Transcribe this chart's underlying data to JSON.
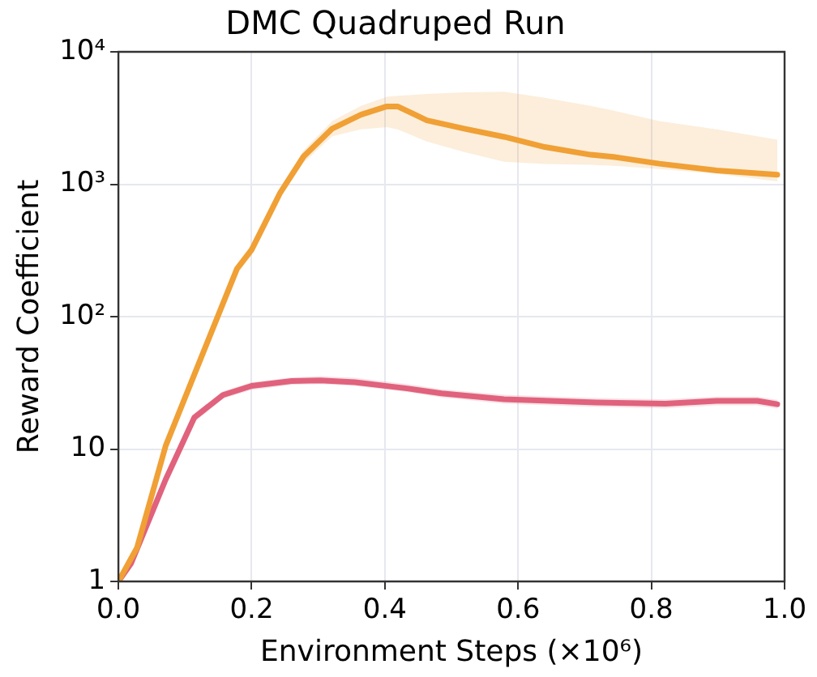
{
  "chart_data": {
    "type": "line",
    "title": "DMC Quadruped Run",
    "xlabel": "Environment Steps (×10⁶)",
    "ylabel": "Reward Coefficient",
    "log": "y",
    "grid": true,
    "legend": false,
    "marker": "none",
    "line_style": "solid",
    "xlim": [
      0,
      1
    ],
    "xticks": [
      {
        "value": 0,
        "label": "0.0"
      },
      {
        "value": 0.2,
        "label": "0.2"
      },
      {
        "value": 0.4,
        "label": "0.4"
      },
      {
        "value": 0.6,
        "label": "0.6"
      },
      {
        "value": 0.8,
        "label": "0.8"
      },
      {
        "value": 1,
        "label": "1.0"
      }
    ],
    "ylim": [
      1,
      10000
    ],
    "yticks": [
      1,
      10,
      {
        "value": 100,
        "label": "10²"
      },
      {
        "value": 1000,
        "label": "10³"
      },
      {
        "value": 10000,
        "label": "10⁴"
      }
    ],
    "series": [
      {
        "color": "#f0a035",
        "x": [
          0,
          0.028,
          0.071,
          0.122,
          0.178,
          0.2,
          0.243,
          0.278,
          0.321,
          0.364,
          0.403,
          0.419,
          0.463,
          0.519,
          0.579,
          0.64,
          0.709,
          0.743,
          0.812,
          0.898,
          0.989
        ],
        "values": [
          1,
          1.8,
          10.6,
          46,
          230,
          320,
          865,
          1620,
          2630,
          3350,
          3870,
          3870,
          3040,
          2630,
          2280,
          1910,
          1670,
          1610,
          1430,
          1270,
          1180
        ],
        "lower": [
          1,
          1.7,
          10,
          42,
          210,
          290,
          800,
          1450,
          2300,
          2600,
          2700,
          2600,
          2100,
          1750,
          1480,
          1420,
          1400,
          1380,
          1300,
          1200,
          1050
        ],
        "upper": [
          1,
          1.9,
          11.2,
          50,
          250,
          350,
          930,
          1800,
          3000,
          3900,
          4570,
          4650,
          4800,
          4950,
          5000,
          4500,
          3900,
          3600,
          3000,
          2600,
          2170
        ]
      },
      {
        "color": "#e0627c",
        "x": [
          0,
          0.019,
          0.071,
          0.114,
          0.157,
          0.2,
          0.26,
          0.303,
          0.355,
          0.433,
          0.485,
          0.579,
          0.717,
          0.821,
          0.898,
          0.959,
          0.989
        ],
        "values": [
          1,
          1.37,
          5.9,
          17.3,
          25.6,
          30,
          32.6,
          33,
          32,
          28.7,
          26.3,
          23.8,
          22.5,
          22,
          23.1,
          23.1,
          21.8
        ],
        "lower": [
          1,
          1.3,
          5.5,
          16,
          24,
          28,
          30.5,
          31,
          30,
          27,
          24.5,
          22,
          20.8,
          20.3,
          21.4,
          21.4,
          20.2
        ],
        "upper": [
          1,
          1.45,
          6.3,
          18.6,
          27.4,
          32,
          34.8,
          35.5,
          34.5,
          31,
          28.3,
          25.7,
          24.3,
          23.8,
          24.9,
          24.9,
          23.5
        ]
      }
    ]
  }
}
